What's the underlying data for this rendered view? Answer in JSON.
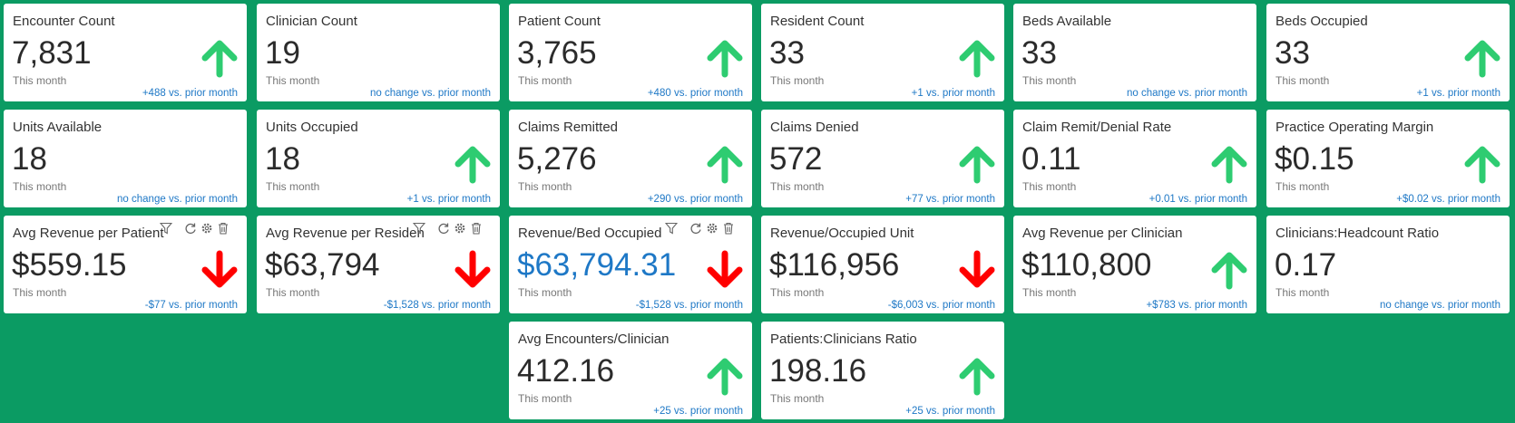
{
  "colors": {
    "background": "#0b9b63",
    "up_arrow": "#2ecc71",
    "down_arrow": "#ff0000",
    "delta_text": "#1e78c6",
    "value_text": "#2b2b2b",
    "value_blue": "#1e78c6"
  },
  "cards": [
    {
      "title": "Encounter Count",
      "value": "7,831",
      "period": "This month",
      "delta": "+488 vs. prior month",
      "trend": "up"
    },
    {
      "title": "Clinician Count",
      "value": "19",
      "period": "This month",
      "delta": "no change vs. prior month",
      "trend": "none"
    },
    {
      "title": "Patient Count",
      "value": "3,765",
      "period": "This month",
      "delta": "+480 vs. prior month",
      "trend": "up"
    },
    {
      "title": "Resident Count",
      "value": "33",
      "period": "This month",
      "delta": "+1 vs. prior month",
      "trend": "up"
    },
    {
      "title": "Beds Available",
      "value": "33",
      "period": "This month",
      "delta": "no change vs. prior month",
      "trend": "none"
    },
    {
      "title": "Beds Occupied",
      "value": "33",
      "period": "This month",
      "delta": "+1 vs. prior month",
      "trend": "up"
    },
    {
      "title": "Units Available",
      "value": "18",
      "period": "This month",
      "delta": "no change vs. prior month",
      "trend": "none"
    },
    {
      "title": "Units Occupied",
      "value": "18",
      "period": "This month",
      "delta": "+1 vs. prior month",
      "trend": "up"
    },
    {
      "title": "Claims Remitted",
      "value": "5,276",
      "period": "This month",
      "delta": "+290 vs. prior month",
      "trend": "up"
    },
    {
      "title": "Claims Denied",
      "value": "572",
      "period": "This month",
      "delta": "+77 vs. prior month",
      "trend": "up"
    },
    {
      "title": "Claim Remit/Denial Rate",
      "value": "0.11",
      "period": "This month",
      "delta": "+0.01 vs. prior month",
      "trend": "up"
    },
    {
      "title": "Practice Operating Margin",
      "value": "$0.15",
      "period": "This month",
      "delta": "+$0.02 vs. prior month",
      "trend": "up"
    },
    {
      "title": "Avg Revenue per Patient",
      "value": "$559.15",
      "period": "This month",
      "delta": "-$77 vs. prior month",
      "trend": "down",
      "tools": true
    },
    {
      "title": "Avg Revenue per Residen",
      "value": "$63,794",
      "period": "This month",
      "delta": "-$1,528 vs. prior month",
      "trend": "down",
      "tools": true
    },
    {
      "title": "Revenue/Bed Occupied",
      "value": "$63,794.31",
      "period": "This month",
      "delta": "-$1,528 vs. prior month",
      "trend": "down",
      "tools": true,
      "highlight": true
    },
    {
      "title": "Revenue/Occupied Unit",
      "value": "$116,956",
      "period": "This month",
      "delta": "-$6,003 vs. prior month",
      "trend": "down"
    },
    {
      "title": "Avg Revenue per Clinician",
      "value": "$110,800",
      "period": "This month",
      "delta": "+$783 vs. prior month",
      "trend": "up"
    },
    {
      "title": "Clinicians:Headcount Ratio",
      "value": "0.17",
      "period": "This month",
      "delta": "no change vs. prior month",
      "trend": "none"
    },
    {
      "title": "Avg Encounters/Clinician",
      "value": "412.16",
      "period": "This month",
      "delta": "+25 vs. prior month",
      "trend": "up"
    },
    {
      "title": "Patients:Clinicians Ratio",
      "value": "198.16",
      "period": "This month",
      "delta": "+25 vs. prior month",
      "trend": "up"
    }
  ]
}
